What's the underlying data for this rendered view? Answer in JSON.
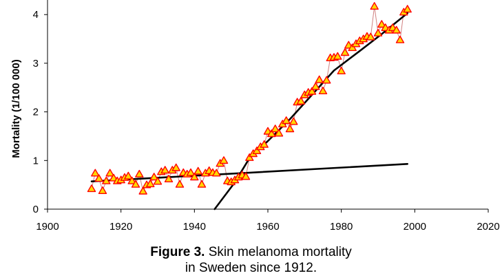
{
  "caption": {
    "label": "Figure 3.",
    "line1": "Skin melanoma mortality",
    "line2": "in Sweden since 1912."
  },
  "chart_data": {
    "type": "scatter",
    "title": "",
    "xlabel": "",
    "ylabel": "Mortality (1/100 000)",
    "xlim": [
      1900,
      2020
    ],
    "ylim": [
      0,
      4.3
    ],
    "xticks": [
      1900,
      1920,
      1940,
      1960,
      1980,
      2000,
      2020
    ],
    "yticks": [
      0,
      1,
      2,
      3,
      4
    ],
    "marker_color": "#ff0000",
    "marker_fill": "#ffd700",
    "connector_color": "#d08080",
    "trend_color": "#000000",
    "series": [
      {
        "x": [
          1912,
          1913,
          1914,
          1915,
          1916,
          1917,
          1918,
          1919,
          1920,
          1921,
          1922,
          1923,
          1924,
          1925,
          1926,
          1927,
          1928,
          1929,
          1930,
          1931,
          1932,
          1933,
          1934,
          1935,
          1936,
          1937,
          1938,
          1939,
          1940,
          1941,
          1942,
          1943,
          1944,
          1945,
          1946,
          1947,
          1948,
          1949,
          1950,
          1951,
          1952,
          1953,
          1954,
          1955,
          1956,
          1957,
          1958,
          1959,
          1960,
          1961,
          1962,
          1963,
          1964,
          1965,
          1966,
          1967,
          1968,
          1969,
          1970,
          1971,
          1972,
          1973,
          1974,
          1975,
          1976,
          1977,
          1978,
          1979,
          1980,
          1981,
          1982,
          1983,
          1984,
          1985,
          1986,
          1987,
          1988,
          1989,
          1990,
          1991,
          1992,
          1993,
          1994,
          1995,
          1996,
          1997,
          1998
        ],
        "y": [
          0.42,
          0.74,
          0.63,
          0.38,
          0.58,
          0.74,
          0.64,
          0.58,
          0.6,
          0.65,
          0.68,
          0.58,
          0.51,
          0.72,
          0.37,
          0.5,
          0.52,
          0.66,
          0.57,
          0.77,
          0.8,
          0.62,
          0.8,
          0.85,
          0.51,
          0.75,
          0.72,
          0.75,
          0.66,
          0.78,
          0.51,
          0.74,
          0.79,
          0.75,
          0.74,
          0.94,
          1.0,
          0.58,
          0.56,
          0.6,
          0.66,
          0.7,
          0.67,
          1.06,
          1.14,
          1.2,
          1.28,
          1.33,
          1.6,
          1.55,
          1.65,
          1.56,
          1.75,
          1.82,
          1.65,
          1.8,
          2.2,
          2.22,
          2.35,
          2.4,
          2.42,
          2.52,
          2.66,
          2.43,
          2.65,
          3.11,
          3.12,
          3.14,
          2.84,
          3.22,
          3.37,
          3.32,
          3.4,
          3.46,
          3.5,
          3.55,
          3.54,
          4.17,
          3.62,
          3.8,
          3.73,
          3.68,
          3.73,
          3.68,
          3.48,
          4.05,
          4.11
        ]
      }
    ],
    "trend_lines": [
      {
        "x": [
          1912,
          1998
        ],
        "y": [
          0.57,
          0.93
        ]
      },
      {
        "x": [
          1945.5,
          1951,
          1955,
          1960,
          1966,
          1972,
          1978,
          1985,
          1991,
          1998
        ],
        "y": [
          0.0,
          0.55,
          1.05,
          1.4,
          1.85,
          2.35,
          2.85,
          3.25,
          3.6,
          4.03
        ]
      }
    ]
  }
}
